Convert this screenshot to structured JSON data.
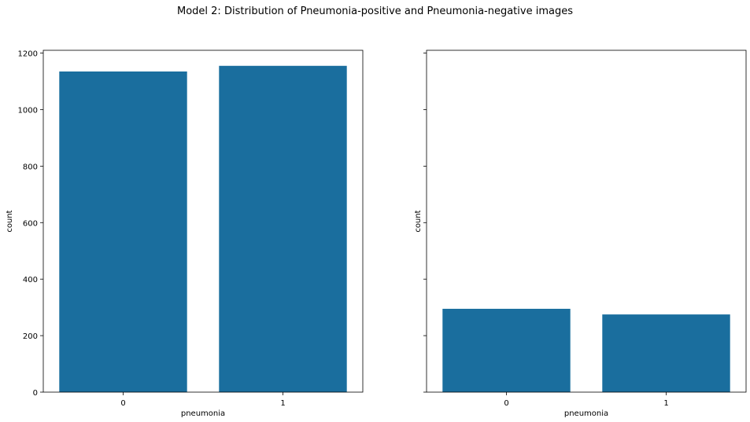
{
  "figure": {
    "title": "Model 2: Distribution of Pneumonia-positive and Pneumonia-negative images"
  },
  "chart_data": [
    {
      "type": "bar",
      "categories": [
        "0",
        "1"
      ],
      "values": [
        1135,
        1155
      ],
      "title": "",
      "xlabel": "pneumonia",
      "ylabel": "count",
      "ylim": [
        0,
        1210
      ],
      "yticks": [
        0,
        200,
        400,
        600,
        800,
        1000,
        1200
      ],
      "grid": false,
      "color": "#1a6e9e"
    },
    {
      "type": "bar",
      "categories": [
        "0",
        "1"
      ],
      "values": [
        295,
        275
      ],
      "title": "",
      "xlabel": "pneumonia",
      "ylabel": "count",
      "ylim": [
        0,
        1210
      ],
      "yticks": [
        0,
        200,
        400,
        600,
        800,
        1000,
        1200
      ],
      "sharey": true,
      "grid": false,
      "color": "#1a6e9e"
    }
  ]
}
